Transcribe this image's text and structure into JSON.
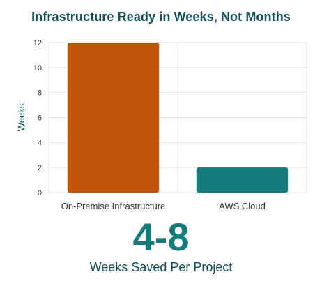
{
  "chart_data": {
    "type": "bar",
    "title": "Infrastructure Ready in Weeks, Not Months",
    "categories": [
      "On-Premise Infrastructure",
      "AWS Cloud"
    ],
    "values": [
      12,
      2
    ],
    "bar_colors": [
      "#c0540a",
      "#137b7b"
    ],
    "xlabel": "",
    "ylabel": "Weeks",
    "ylim": [
      0,
      12
    ],
    "yticks": [
      0,
      2,
      4,
      6,
      8,
      10,
      12
    ],
    "grid": true,
    "legend": "none"
  },
  "callout": {
    "value": "4-8",
    "label": "Weeks Saved Per Project"
  },
  "colors": {
    "title": "#0f4c5c",
    "accent": "#137b7b",
    "axis_text": "#333333",
    "grid": "#e3e3e3"
  }
}
